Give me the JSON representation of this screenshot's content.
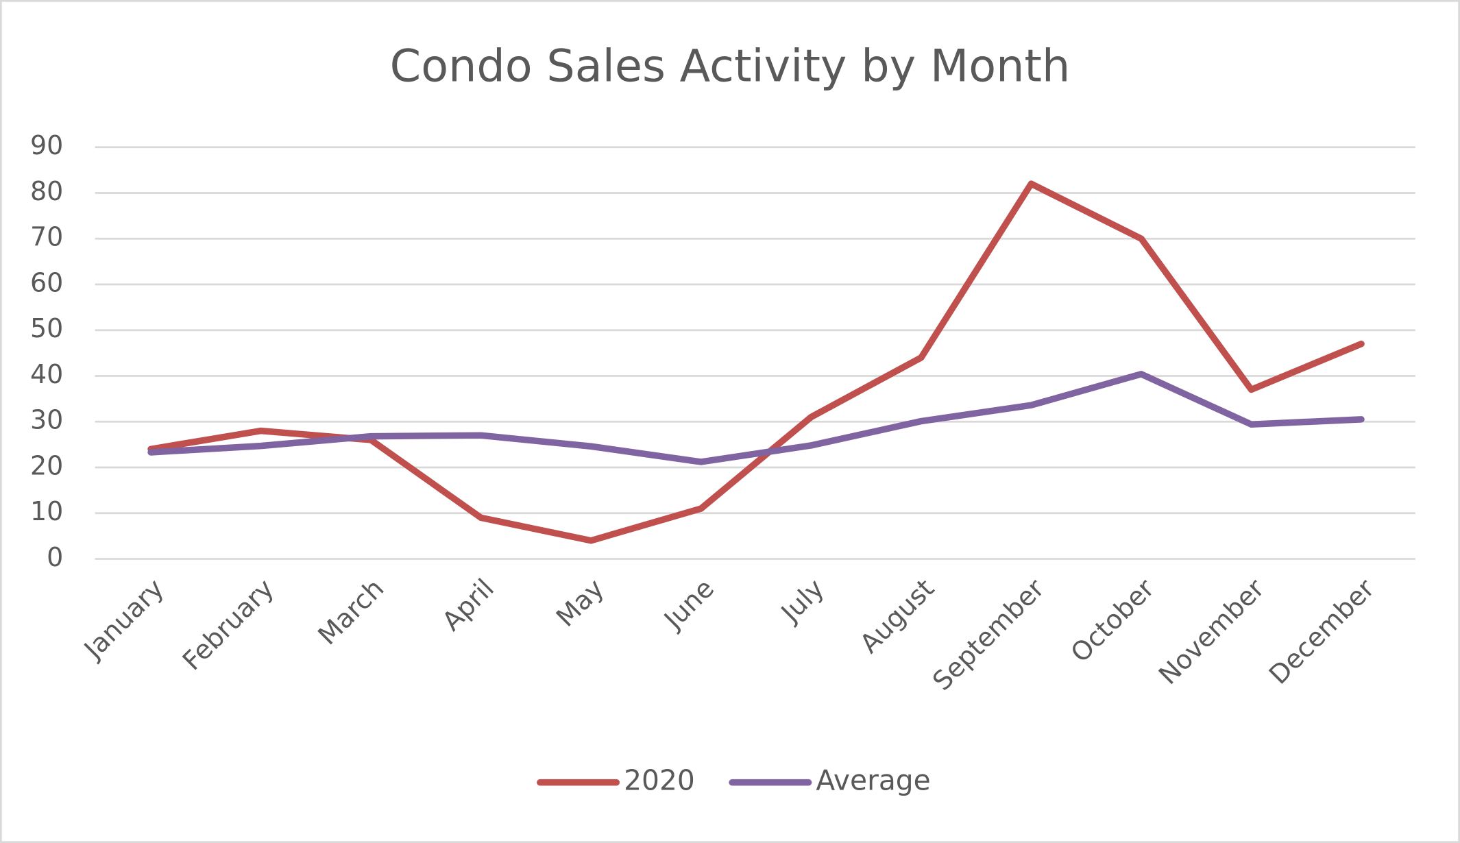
{
  "chart_data": {
    "type": "line",
    "title": "Condo Sales Activity by Month",
    "categories": [
      "January",
      "February",
      "March",
      "April",
      "May",
      "June",
      "July",
      "August",
      "September",
      "October",
      "November",
      "December"
    ],
    "series": [
      {
        "name": "2020",
        "color": "#c0504d",
        "values": [
          24,
          28,
          26,
          9,
          4,
          11,
          31,
          44,
          82,
          70,
          37,
          47
        ]
      },
      {
        "name": "Average",
        "color": "#8064a2",
        "values": [
          23.3,
          24.7,
          26.8,
          27,
          24.6,
          21.2,
          24.8,
          30.1,
          33.6,
          40.4,
          29.4,
          30.5
        ]
      }
    ],
    "ylim": [
      0,
      90
    ],
    "yticks": [
      0,
      10,
      20,
      30,
      40,
      50,
      60,
      70,
      80,
      90
    ],
    "grid": true,
    "legend": "bottom"
  }
}
